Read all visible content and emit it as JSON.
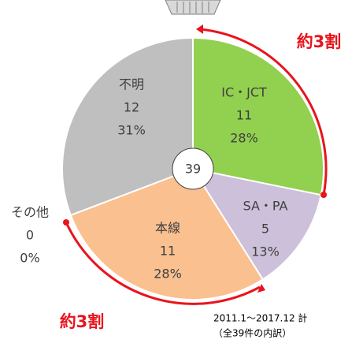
{
  "chart_data": {
    "type": "pie",
    "categories": [
      "IC・JCT",
      "SA・PA",
      "本線",
      "その他",
      "不明"
    ],
    "values": [
      11,
      5,
      11,
      0,
      12
    ],
    "shares": [
      28,
      13,
      28,
      0,
      31
    ],
    "share_labels": [
      "28%",
      "13%",
      "28%",
      "0%",
      "31%"
    ],
    "colors": [
      "#92d050",
      "#ccc0da",
      "#fac090",
      "#d9d9d9",
      "#bfbfbf"
    ],
    "total": 39,
    "annotations": [
      "約3割",
      "約3割"
    ],
    "footnote": [
      "2011.1～2017.12 計",
      "（全39件の内訳）"
    ]
  }
}
